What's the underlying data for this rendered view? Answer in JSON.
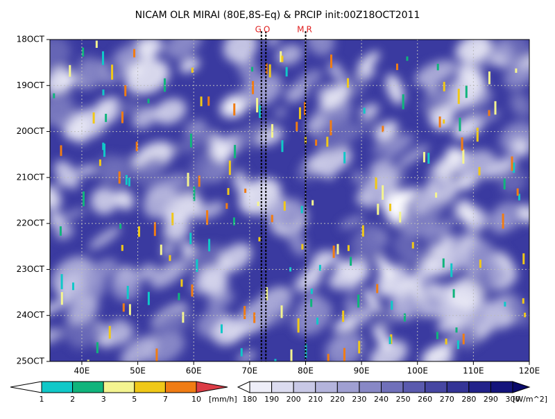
{
  "chart_data": {
    "type": "hovmoller",
    "title": "NICAM OLR MIRAI (80E,8S-Eq) & PRCIP init:00Z18OCT2011",
    "xlim": [
      34.3,
      120
    ],
    "xticks": [
      {
        "value": 40,
        "label": "40E"
      },
      {
        "value": 50,
        "label": "50E"
      },
      {
        "value": 60,
        "label": "60E"
      },
      {
        "value": 70,
        "label": "70E"
      },
      {
        "value": 80,
        "label": "80E"
      },
      {
        "value": 90,
        "label": "90E"
      },
      {
        "value": 100,
        "label": "100E"
      },
      {
        "value": 110,
        "label": "110E"
      },
      {
        "value": 120,
        "label": "120E"
      }
    ],
    "ylim": [
      18,
      25
    ],
    "yticks": [
      {
        "value": 18,
        "label": "18OCT"
      },
      {
        "value": 19,
        "label": "19OCT"
      },
      {
        "value": 20,
        "label": "20OCT"
      },
      {
        "value": 21,
        "label": "21OCT"
      },
      {
        "value": 22,
        "label": "22OCT"
      },
      {
        "value": 23,
        "label": "23OCT"
      },
      {
        "value": 24,
        "label": "24OCT"
      },
      {
        "value": 25,
        "label": "25OCT"
      }
    ],
    "grid": true,
    "markers": [
      {
        "label": "GO",
        "x": [
          72.1,
          72.9
        ],
        "color": "#e02020"
      },
      {
        "label": "MR",
        "x": [
          80
        ],
        "color": "#e02020"
      }
    ],
    "colorbars": [
      {
        "unit": "[mm/h]",
        "levels": [
          1,
          2,
          3,
          5,
          7,
          10
        ],
        "colors": [
          "#ffffff",
          "#10c8c8",
          "#10b47c",
          "#f4f490",
          "#f0c818",
          "#f07c14",
          "#dc3c46"
        ]
      },
      {
        "unit": "[W/m^2]",
        "levels": [
          180,
          190,
          200,
          210,
          220,
          230,
          240,
          250,
          260,
          270,
          280,
          290,
          300
        ],
        "colors": [
          "#ffffff",
          "#eeeef8",
          "#dcdcf0",
          "#c8c8e6",
          "#b4b4dc",
          "#a0a0d2",
          "#8888c6",
          "#7070ba",
          "#5a5aae",
          "#4646a2",
          "#343496",
          "#22228a",
          "#14147c",
          "#0a0a6a"
        ]
      }
    ]
  }
}
